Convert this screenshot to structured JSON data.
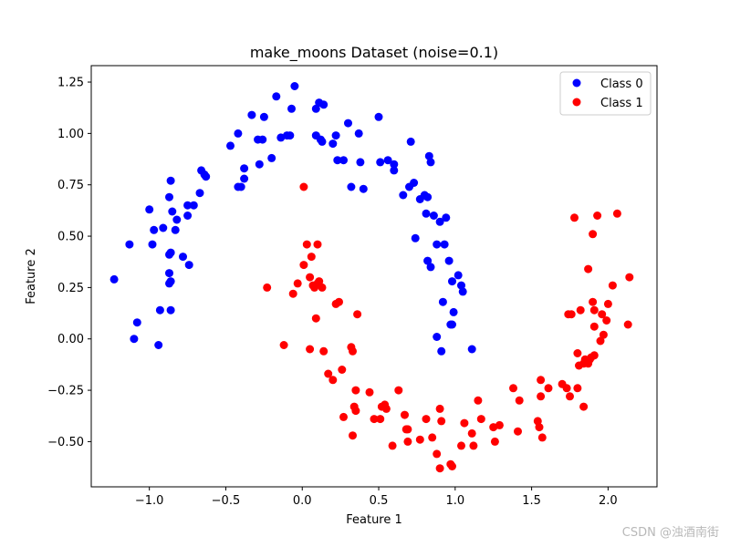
{
  "chart_data": {
    "type": "scatter",
    "title": "make_moons Dataset (noise=0.1)",
    "xlabel": "Feature 1",
    "ylabel": "Feature 2",
    "xlim": [
      -1.38,
      2.32
    ],
    "ylim": [
      -0.72,
      1.33
    ],
    "xticks": [
      -1.0,
      -0.5,
      0.0,
      0.5,
      1.0,
      1.5,
      2.0
    ],
    "xtick_labels": [
      "−1.0",
      "−0.5",
      "0.0",
      "0.5",
      "1.0",
      "1.5",
      "2.0"
    ],
    "yticks": [
      -0.5,
      -0.25,
      0.0,
      0.25,
      0.5,
      0.75,
      1.0,
      1.25
    ],
    "ytick_labels": [
      "−0.50",
      "−0.25",
      "0.00",
      "0.25",
      "0.50",
      "0.75",
      "1.00",
      "1.25"
    ],
    "grid": false,
    "legend": "top-right",
    "series": [
      {
        "name": "Class 0",
        "color": "#0000ff",
        "points": [
          [
            -1.23,
            0.29
          ],
          [
            -1.13,
            0.46
          ],
          [
            -1.08,
            0.08
          ],
          [
            -1.1,
            0.0
          ],
          [
            -0.97,
            0.53
          ],
          [
            -0.98,
            0.46
          ],
          [
            -1.0,
            0.63
          ],
          [
            -0.93,
            0.14
          ],
          [
            -0.94,
            -0.03
          ],
          [
            -0.91,
            0.54
          ],
          [
            -0.86,
            0.77
          ],
          [
            -0.87,
            0.69
          ],
          [
            -0.86,
            0.42
          ],
          [
            -0.87,
            0.41
          ],
          [
            -0.85,
            0.62
          ],
          [
            -0.82,
            0.58
          ],
          [
            -0.83,
            0.53
          ],
          [
            -0.87,
            0.32
          ],
          [
            -0.86,
            0.28
          ],
          [
            -0.87,
            0.27
          ],
          [
            -0.86,
            0.14
          ],
          [
            -0.78,
            0.4
          ],
          [
            -0.75,
            0.65
          ],
          [
            -0.75,
            0.6
          ],
          [
            -0.74,
            0.36
          ],
          [
            -0.71,
            0.65
          ],
          [
            -0.67,
            0.71
          ],
          [
            -0.66,
            0.82
          ],
          [
            -0.64,
            0.8
          ],
          [
            -0.63,
            0.79
          ],
          [
            -0.47,
            0.94
          ],
          [
            -0.42,
            1.0
          ],
          [
            -0.42,
            0.74
          ],
          [
            -0.4,
            0.74
          ],
          [
            -0.38,
            0.78
          ],
          [
            -0.38,
            0.83
          ],
          [
            -0.33,
            1.09
          ],
          [
            -0.29,
            0.97
          ],
          [
            -0.25,
            1.08
          ],
          [
            -0.26,
            0.97
          ],
          [
            -0.28,
            0.85
          ],
          [
            -0.2,
            0.88
          ],
          [
            -0.17,
            1.18
          ],
          [
            -0.14,
            0.98
          ],
          [
            -0.1,
            0.99
          ],
          [
            -0.08,
            0.99
          ],
          [
            -0.07,
            1.12
          ],
          [
            -0.05,
            1.23
          ],
          [
            0.09,
            1.12
          ],
          [
            0.11,
            1.15
          ],
          [
            0.14,
            1.14
          ],
          [
            0.09,
            0.99
          ],
          [
            0.13,
            0.96
          ],
          [
            0.12,
            0.97
          ],
          [
            0.2,
            0.95
          ],
          [
            0.22,
            0.99
          ],
          [
            0.23,
            0.87
          ],
          [
            0.27,
            0.87
          ],
          [
            0.3,
            1.05
          ],
          [
            0.32,
            0.74
          ],
          [
            0.37,
            1.0
          ],
          [
            0.38,
            0.86
          ],
          [
            0.4,
            0.73
          ],
          [
            0.5,
            1.08
          ],
          [
            0.51,
            0.86
          ],
          [
            0.56,
            0.87
          ],
          [
            0.6,
            0.85
          ],
          [
            0.6,
            0.82
          ],
          [
            0.66,
            0.7
          ],
          [
            0.7,
            0.74
          ],
          [
            0.71,
            0.96
          ],
          [
            0.73,
            0.76
          ],
          [
            0.74,
            0.49
          ],
          [
            0.77,
            0.68
          ],
          [
            0.8,
            0.7
          ],
          [
            0.82,
            0.69
          ],
          [
            0.81,
            0.61
          ],
          [
            0.83,
            0.89
          ],
          [
            0.84,
            0.86
          ],
          [
            0.82,
            0.38
          ],
          [
            0.84,
            0.35
          ],
          [
            0.86,
            0.6
          ],
          [
            0.88,
            0.46
          ],
          [
            0.9,
            0.57
          ],
          [
            0.91,
            -0.06
          ],
          [
            0.93,
            0.46
          ],
          [
            0.92,
            0.18
          ],
          [
            0.94,
            0.59
          ],
          [
            0.97,
            0.07
          ],
          [
            0.98,
            0.07
          ],
          [
            0.96,
            0.38
          ],
          [
            0.98,
            0.28
          ],
          [
            0.99,
            0.13
          ],
          [
            1.02,
            0.31
          ],
          [
            1.04,
            0.26
          ],
          [
            1.05,
            0.23
          ],
          [
            1.11,
            -0.05
          ],
          [
            0.88,
            0.01
          ]
        ]
      },
      {
        "name": "Class 1",
        "color": "#ff0000",
        "points": [
          [
            -0.23,
            0.25
          ],
          [
            -0.12,
            -0.03
          ],
          [
            -0.06,
            0.22
          ],
          [
            -0.03,
            0.27
          ],
          [
            0.01,
            0.74
          ],
          [
            0.01,
            0.36
          ],
          [
            0.03,
            0.46
          ],
          [
            0.05,
            0.3
          ],
          [
            0.06,
            0.4
          ],
          [
            0.07,
            0.26
          ],
          [
            0.08,
            0.25
          ],
          [
            0.1,
            0.46
          ],
          [
            0.1,
            0.27
          ],
          [
            0.11,
            0.28
          ],
          [
            0.13,
            0.25
          ],
          [
            0.09,
            0.1
          ],
          [
            0.05,
            -0.05
          ],
          [
            0.14,
            -0.06
          ],
          [
            0.17,
            -0.17
          ],
          [
            0.2,
            -0.2
          ],
          [
            0.22,
            0.17
          ],
          [
            0.24,
            0.18
          ],
          [
            0.26,
            -0.15
          ],
          [
            0.27,
            -0.38
          ],
          [
            0.32,
            -0.04
          ],
          [
            0.33,
            -0.06
          ],
          [
            0.34,
            -0.33
          ],
          [
            0.35,
            -0.35
          ],
          [
            0.35,
            -0.25
          ],
          [
            0.36,
            0.12
          ],
          [
            0.33,
            -0.47
          ],
          [
            0.44,
            -0.26
          ],
          [
            0.47,
            -0.39
          ],
          [
            0.51,
            -0.39
          ],
          [
            0.52,
            -0.33
          ],
          [
            0.54,
            -0.32
          ],
          [
            0.55,
            -0.34
          ],
          [
            0.59,
            -0.52
          ],
          [
            0.63,
            -0.25
          ],
          [
            0.67,
            -0.37
          ],
          [
            0.68,
            -0.44
          ],
          [
            0.69,
            -0.44
          ],
          [
            0.69,
            -0.5
          ],
          [
            0.77,
            -0.49
          ],
          [
            0.81,
            -0.39
          ],
          [
            0.85,
            -0.48
          ],
          [
            0.88,
            -0.56
          ],
          [
            0.9,
            -0.34
          ],
          [
            0.9,
            -0.63
          ],
          [
            0.91,
            -0.4
          ],
          [
            0.97,
            -0.61
          ],
          [
            0.98,
            -0.62
          ],
          [
            1.04,
            -0.52
          ],
          [
            1.06,
            -0.41
          ],
          [
            1.11,
            -0.46
          ],
          [
            1.12,
            -0.52
          ],
          [
            1.15,
            -0.3
          ],
          [
            1.17,
            -0.39
          ],
          [
            1.25,
            -0.43
          ],
          [
            1.26,
            -0.5
          ],
          [
            1.29,
            -0.42
          ],
          [
            1.38,
            -0.24
          ],
          [
            1.41,
            -0.45
          ],
          [
            1.42,
            -0.3
          ],
          [
            1.54,
            -0.4
          ],
          [
            1.55,
            -0.43
          ],
          [
            1.56,
            -0.2
          ],
          [
            1.56,
            -0.28
          ],
          [
            1.57,
            -0.48
          ],
          [
            1.61,
            -0.24
          ],
          [
            1.7,
            -0.22
          ],
          [
            1.73,
            -0.24
          ],
          [
            1.74,
            0.12
          ],
          [
            1.75,
            -0.28
          ],
          [
            1.76,
            0.12
          ],
          [
            1.78,
            0.59
          ],
          [
            1.8,
            -0.07
          ],
          [
            1.8,
            -0.24
          ],
          [
            1.81,
            -0.13
          ],
          [
            1.82,
            0.14
          ],
          [
            1.84,
            -0.12
          ],
          [
            1.84,
            -0.33
          ],
          [
            1.85,
            -0.1
          ],
          [
            1.87,
            -0.12
          ],
          [
            1.87,
            0.34
          ],
          [
            1.88,
            -0.1
          ],
          [
            1.89,
            -0.09
          ],
          [
            1.9,
            0.51
          ],
          [
            1.9,
            0.18
          ],
          [
            1.91,
            0.14
          ],
          [
            1.91,
            -0.08
          ],
          [
            1.91,
            0.06
          ],
          [
            1.93,
            0.6
          ],
          [
            1.95,
            -0.01
          ],
          [
            1.96,
            0.12
          ],
          [
            1.97,
            0.02
          ],
          [
            1.99,
            0.09
          ],
          [
            2.0,
            0.17
          ],
          [
            2.03,
            0.26
          ],
          [
            2.06,
            0.61
          ],
          [
            2.13,
            0.07
          ],
          [
            2.14,
            0.3
          ]
        ]
      }
    ]
  },
  "watermark": "CSDN @浊酒南街"
}
